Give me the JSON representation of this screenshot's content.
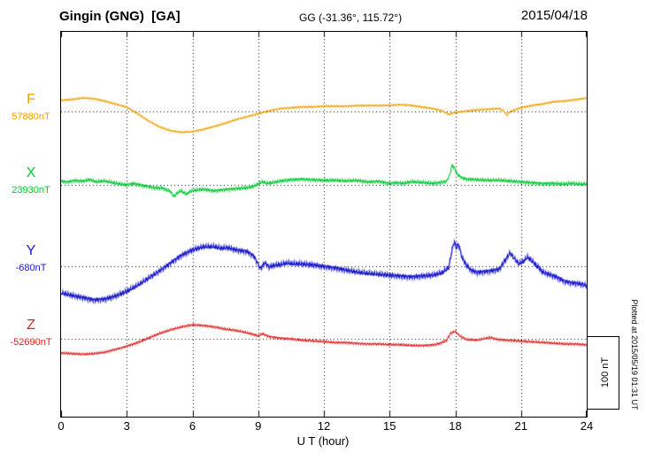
{
  "header": {
    "station": "Gingin (GNG)  [GA]",
    "coords": "GG (-31.36°, 115.72°)",
    "date": "2015/04/18"
  },
  "axis": {
    "x_label": "U T (hour)"
  },
  "scale_bar": {
    "label": "100 nT",
    "nT": 100
  },
  "credit": "Plotted at 2015/05/19 01:31 UT",
  "chart_data": {
    "type": "line",
    "title": "Gingin (GNG) [GA] magnetogram 2015/04/18",
    "xlabel": "U T (hour)",
    "x_range": [
      0,
      24
    ],
    "x_ticks": [
      0,
      3,
      6,
      9,
      12,
      15,
      18,
      21,
      24
    ],
    "grid": "dotted vertical at 3h steps, dotted horizontal at each component baseline",
    "legend_position": "left margin, one colored label per trace",
    "scale_bar_nT": 100,
    "series": [
      {
        "name": "F",
        "value_label": "57880nT",
        "base_value_nT": 57880,
        "color": "#f0a000",
        "points_units": "hours UT vs nT offset from baseline",
        "points": [
          [
            0,
            15
          ],
          [
            0.5,
            16
          ],
          [
            1,
            18
          ],
          [
            1.5,
            17
          ],
          [
            2,
            14
          ],
          [
            2.5,
            10
          ],
          [
            3,
            6
          ],
          [
            3.5,
            -3
          ],
          [
            4,
            -13
          ],
          [
            4.5,
            -21
          ],
          [
            5,
            -26
          ],
          [
            5.5,
            -28
          ],
          [
            6,
            -27
          ],
          [
            6.5,
            -24
          ],
          [
            7,
            -20
          ],
          [
            7.5,
            -16
          ],
          [
            8,
            -11
          ],
          [
            8.5,
            -7
          ],
          [
            9,
            -3
          ],
          [
            9.5,
            1
          ],
          [
            10,
            4
          ],
          [
            10.5,
            5
          ],
          [
            11,
            6
          ],
          [
            11.5,
            6
          ],
          [
            12,
            7
          ],
          [
            12.5,
            7
          ],
          [
            13,
            7
          ],
          [
            13.5,
            8
          ],
          [
            14,
            8
          ],
          [
            14.5,
            8
          ],
          [
            15,
            8
          ],
          [
            15.5,
            9
          ],
          [
            16,
            8
          ],
          [
            16.5,
            6
          ],
          [
            17,
            4
          ],
          [
            17.4,
            1
          ],
          [
            17.7,
            -4
          ],
          [
            17.9,
            -2
          ],
          [
            18.1,
            -1
          ],
          [
            18.4,
            0
          ],
          [
            18.7,
            1
          ],
          [
            19,
            2
          ],
          [
            19.5,
            3
          ],
          [
            20,
            4
          ],
          [
            20.2,
            1
          ],
          [
            20.35,
            -5
          ],
          [
            20.5,
            0
          ],
          [
            20.8,
            3
          ],
          [
            21,
            5
          ],
          [
            21.5,
            8
          ],
          [
            22,
            10
          ],
          [
            22.5,
            13
          ],
          [
            23,
            14
          ],
          [
            23.5,
            16
          ],
          [
            24,
            18
          ]
        ]
      },
      {
        "name": "X",
        "value_label": "23930nT",
        "base_value_nT": 23930,
        "color": "#00c832",
        "points_units": "hours UT vs nT offset from baseline",
        "points": [
          [
            0,
            5
          ],
          [
            0.3,
            4
          ],
          [
            0.6,
            6
          ],
          [
            1,
            5
          ],
          [
            1.3,
            7
          ],
          [
            1.6,
            4
          ],
          [
            2,
            5
          ],
          [
            2.5,
            2
          ],
          [
            3,
            0
          ],
          [
            3.3,
            2
          ],
          [
            3.6,
            0
          ],
          [
            4,
            -2
          ],
          [
            4.3,
            -4
          ],
          [
            4.6,
            -4
          ],
          [
            5,
            -9
          ],
          [
            5.15,
            -16
          ],
          [
            5.3,
            -11
          ],
          [
            5.5,
            -8
          ],
          [
            5.7,
            -13
          ],
          [
            5.9,
            -9
          ],
          [
            6.2,
            -7
          ],
          [
            6.5,
            -6
          ],
          [
            7,
            -8
          ],
          [
            7.5,
            -6
          ],
          [
            8,
            -5
          ],
          [
            8.5,
            -4
          ],
          [
            8.8,
            -2
          ],
          [
            9,
            1
          ],
          [
            9.2,
            4
          ],
          [
            9.4,
            2
          ],
          [
            9.7,
            3
          ],
          [
            10,
            5
          ],
          [
            10.5,
            7
          ],
          [
            11,
            8
          ],
          [
            11.5,
            7
          ],
          [
            12,
            6
          ],
          [
            12.5,
            6
          ],
          [
            13,
            5
          ],
          [
            13.5,
            6
          ],
          [
            14,
            4
          ],
          [
            14.5,
            5
          ],
          [
            15,
            2
          ],
          [
            15.3,
            3
          ],
          [
            15.6,
            2
          ],
          [
            16,
            4
          ],
          [
            16.5,
            3
          ],
          [
            17,
            2
          ],
          [
            17.3,
            3
          ],
          [
            17.6,
            5
          ],
          [
            17.75,
            14
          ],
          [
            17.85,
            27
          ],
          [
            18,
            21
          ],
          [
            18.1,
            14
          ],
          [
            18.3,
            10
          ],
          [
            18.5,
            8
          ],
          [
            19,
            7
          ],
          [
            19.5,
            6
          ],
          [
            20,
            6
          ],
          [
            20.5,
            5
          ],
          [
            21,
            4
          ],
          [
            21.5,
            3
          ],
          [
            22,
            2
          ],
          [
            22.5,
            2
          ],
          [
            23,
            1
          ],
          [
            23.3,
            2
          ],
          [
            23.6,
            1
          ],
          [
            24,
            1
          ]
        ]
      },
      {
        "name": "Y",
        "value_label": "-680nT",
        "base_value_nT": -680,
        "color": "#1818cc",
        "points_units": "hours UT vs nT offset from baseline",
        "points": [
          [
            0,
            -36
          ],
          [
            0.3,
            -38
          ],
          [
            0.6,
            -40
          ],
          [
            1,
            -42
          ],
          [
            1.5,
            -45
          ],
          [
            2,
            -44
          ],
          [
            2.5,
            -40
          ],
          [
            3,
            -34
          ],
          [
            3.5,
            -26
          ],
          [
            4,
            -16
          ],
          [
            4.5,
            -6
          ],
          [
            5,
            5
          ],
          [
            5.5,
            15
          ],
          [
            6,
            22
          ],
          [
            6.5,
            26
          ],
          [
            7,
            26
          ],
          [
            7.3,
            24
          ],
          [
            7.6,
            25
          ],
          [
            8,
            22
          ],
          [
            8.5,
            20
          ],
          [
            8.8,
            14
          ],
          [
            9,
            3
          ],
          [
            9.1,
            -3
          ],
          [
            9.3,
            5
          ],
          [
            9.5,
            -1
          ],
          [
            9.7,
            1
          ],
          [
            10,
            2
          ],
          [
            10.3,
            4
          ],
          [
            10.6,
            3
          ],
          [
            11,
            3
          ],
          [
            11.5,
            2
          ],
          [
            12,
            0
          ],
          [
            12.5,
            -2
          ],
          [
            13,
            -5
          ],
          [
            13.5,
            -8
          ],
          [
            14,
            -10
          ],
          [
            14.5,
            -11
          ],
          [
            15,
            -12
          ],
          [
            15.5,
            -13
          ],
          [
            16,
            -14
          ],
          [
            16.5,
            -13
          ],
          [
            17,
            -12
          ],
          [
            17.4,
            -9
          ],
          [
            17.7,
            -2
          ],
          [
            17.85,
            22
          ],
          [
            17.95,
            33
          ],
          [
            18.05,
            24
          ],
          [
            18.15,
            30
          ],
          [
            18.3,
            12
          ],
          [
            18.5,
            2
          ],
          [
            18.7,
            -5
          ],
          [
            19,
            -8
          ],
          [
            19.3,
            -7
          ],
          [
            19.6,
            -6
          ],
          [
            20,
            -4
          ],
          [
            20.3,
            9
          ],
          [
            20.5,
            18
          ],
          [
            20.7,
            10
          ],
          [
            20.9,
            3
          ],
          [
            21.1,
            6
          ],
          [
            21.3,
            12
          ],
          [
            21.5,
            7
          ],
          [
            21.8,
            -2
          ],
          [
            22,
            -8
          ],
          [
            22.3,
            -11
          ],
          [
            22.6,
            -14
          ],
          [
            23,
            -20
          ],
          [
            23.3,
            -22
          ],
          [
            23.6,
            -23
          ],
          [
            24,
            -26
          ]
        ]
      },
      {
        "name": "Z",
        "value_label": "-52690nT",
        "base_value_nT": -52690,
        "color": "#e02020",
        "points_units": "hours UT vs nT offset from baseline",
        "points": [
          [
            0,
            -19
          ],
          [
            0.5,
            -20
          ],
          [
            1,
            -21
          ],
          [
            1.5,
            -20
          ],
          [
            2,
            -18
          ],
          [
            2.5,
            -14
          ],
          [
            3,
            -10
          ],
          [
            3.5,
            -5
          ],
          [
            4,
            1
          ],
          [
            4.5,
            7
          ],
          [
            5,
            12
          ],
          [
            5.5,
            16
          ],
          [
            6,
            19
          ],
          [
            6.5,
            18
          ],
          [
            7,
            16
          ],
          [
            7.5,
            13
          ],
          [
            8,
            11
          ],
          [
            8.5,
            8
          ],
          [
            9,
            4
          ],
          [
            9.2,
            7
          ],
          [
            9.5,
            3
          ],
          [
            10,
            1
          ],
          [
            10.5,
            0
          ],
          [
            11,
            -2
          ],
          [
            11.5,
            -3
          ],
          [
            12,
            -4
          ],
          [
            12.5,
            -5
          ],
          [
            13,
            -5
          ],
          [
            13.5,
            -6
          ],
          [
            14,
            -7
          ],
          [
            14.5,
            -7
          ],
          [
            15,
            -8
          ],
          [
            15.5,
            -8
          ],
          [
            16,
            -9
          ],
          [
            16.5,
            -9
          ],
          [
            17,
            -8
          ],
          [
            17.3,
            -6
          ],
          [
            17.6,
            -2
          ],
          [
            17.8,
            8
          ],
          [
            18,
            10
          ],
          [
            18.2,
            4
          ],
          [
            18.5,
            -1
          ],
          [
            19,
            -2
          ],
          [
            19.3,
            0
          ],
          [
            19.6,
            2
          ],
          [
            19.8,
            0
          ],
          [
            20,
            -1
          ],
          [
            20.5,
            -2
          ],
          [
            21,
            -3
          ],
          [
            21.5,
            -4
          ],
          [
            22,
            -5
          ],
          [
            22.5,
            -6
          ],
          [
            23,
            -7
          ],
          [
            23.5,
            -7
          ],
          [
            24,
            -8
          ]
        ]
      }
    ]
  }
}
